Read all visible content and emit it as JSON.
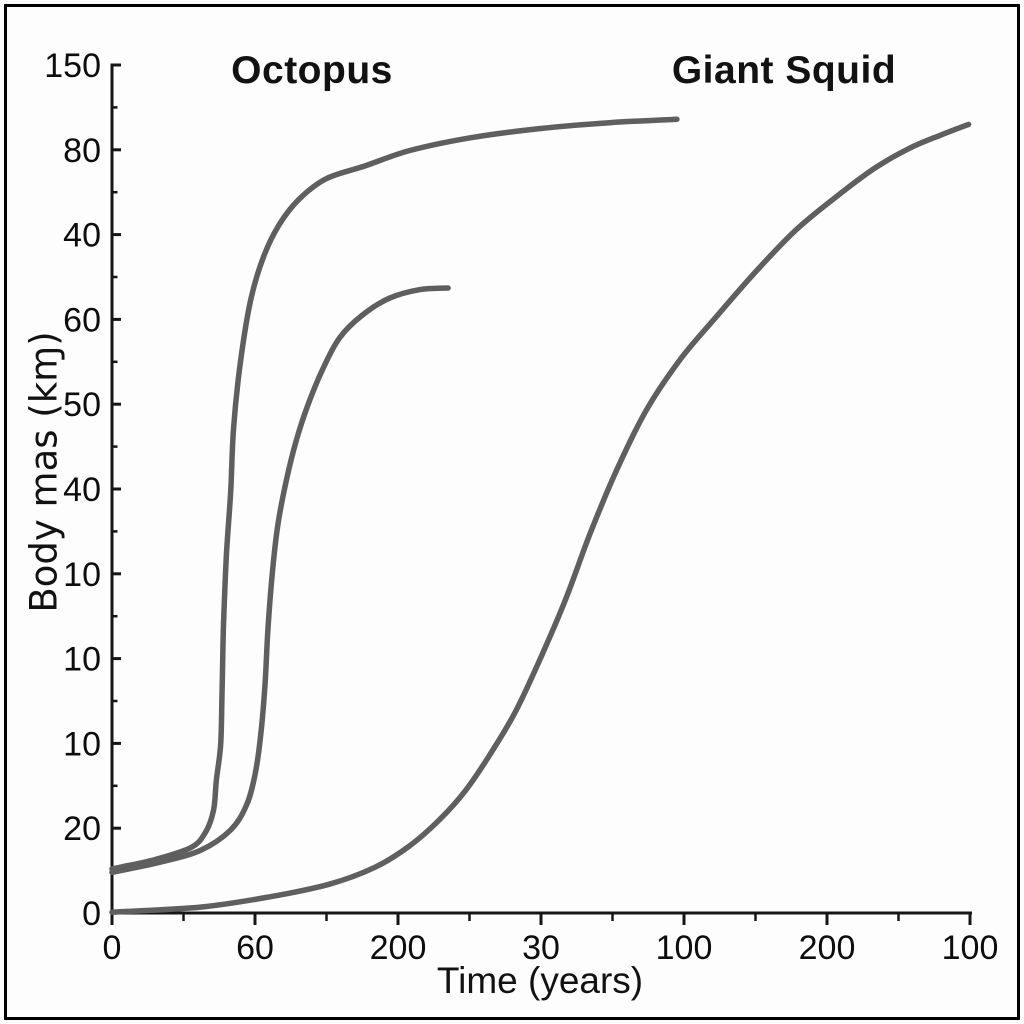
{
  "figure": {
    "background": "#fdfdfd",
    "border_color": "#000000"
  },
  "chart_data": {
    "type": "line",
    "title": "",
    "xlabel": "Time (years)",
    "ylabel": "Body mas (kɱ)",
    "annotations": {
      "octopus": "Octopus",
      "giant_squid": "Giant Squid"
    },
    "x_axis": {
      "tick_labels": [
        "0",
        "60",
        "200",
        "30",
        "100",
        "200",
        "100"
      ],
      "minor_ticks_between_majors": true
    },
    "y_axis": {
      "tick_labels": [
        "150",
        "80",
        "40",
        "60",
        "50",
        "40",
        "10",
        "10",
        "10",
        "20",
        "0"
      ],
      "minor_ticks_between_majors": true
    },
    "axis_color": "#161616",
    "tick_label_color": "#0d0d0d",
    "line_color": "#5f5f5f",
    "legend_position": "none",
    "grid": false,
    "series": [
      {
        "name": "octopus_large",
        "points": [
          [
            0.0,
            0.52
          ],
          [
            0.3,
            0.63
          ],
          [
            0.55,
            0.77
          ],
          [
            0.65,
            0.94
          ],
          [
            0.71,
            1.21
          ],
          [
            0.73,
            1.57
          ],
          [
            0.76,
            1.99
          ],
          [
            0.77,
            2.63
          ],
          [
            0.78,
            3.4
          ],
          [
            0.8,
            4.22
          ],
          [
            0.83,
            4.97
          ],
          [
            0.85,
            5.72
          ],
          [
            0.9,
            6.52
          ],
          [
            0.97,
            7.23
          ],
          [
            1.06,
            7.74
          ],
          [
            1.17,
            8.12
          ],
          [
            1.31,
            8.42
          ],
          [
            1.5,
            8.66
          ],
          [
            1.77,
            8.81
          ],
          [
            2.08,
            8.99
          ],
          [
            2.5,
            9.14
          ],
          [
            2.99,
            9.25
          ],
          [
            3.48,
            9.32
          ],
          [
            3.95,
            9.36
          ]
        ]
      },
      {
        "name": "octopus_small",
        "points": [
          [
            0.0,
            0.48
          ],
          [
            0.34,
            0.6
          ],
          [
            0.62,
            0.74
          ],
          [
            0.83,
            0.98
          ],
          [
            0.94,
            1.27
          ],
          [
            1.0,
            1.63
          ],
          [
            1.04,
            2.1
          ],
          [
            1.07,
            2.69
          ],
          [
            1.09,
            3.34
          ],
          [
            1.12,
            3.99
          ],
          [
            1.16,
            4.58
          ],
          [
            1.22,
            5.11
          ],
          [
            1.29,
            5.58
          ],
          [
            1.37,
            5.99
          ],
          [
            1.47,
            6.4
          ],
          [
            1.59,
            6.78
          ],
          [
            1.75,
            7.05
          ],
          [
            1.94,
            7.25
          ],
          [
            2.15,
            7.35
          ],
          [
            2.35,
            7.37
          ]
        ]
      },
      {
        "name": "giant_squid",
        "points": [
          [
            0.0,
            0.01
          ],
          [
            0.62,
            0.07
          ],
          [
            1.1,
            0.19
          ],
          [
            1.52,
            0.34
          ],
          [
            1.84,
            0.54
          ],
          [
            2.08,
            0.79
          ],
          [
            2.29,
            1.1
          ],
          [
            2.47,
            1.44
          ],
          [
            2.64,
            1.86
          ],
          [
            2.82,
            2.37
          ],
          [
            2.99,
            2.98
          ],
          [
            3.17,
            3.69
          ],
          [
            3.34,
            4.46
          ],
          [
            3.52,
            5.19
          ],
          [
            3.73,
            5.91
          ],
          [
            3.97,
            6.52
          ],
          [
            4.22,
            7.02
          ],
          [
            4.5,
            7.56
          ],
          [
            4.78,
            8.05
          ],
          [
            5.06,
            8.44
          ],
          [
            5.34,
            8.79
          ],
          [
            5.58,
            9.02
          ],
          [
            5.79,
            9.17
          ],
          [
            5.99,
            9.3
          ]
        ]
      }
    ]
  }
}
